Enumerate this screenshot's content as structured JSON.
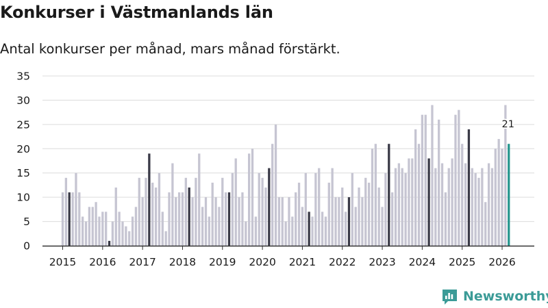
{
  "chart_data": {
    "type": "bar",
    "title": "Konkurser i Västmanlands län",
    "subtitle": "Antal konkurser per månad, mars månad förstärkt.",
    "xlabel": "",
    "ylabel": "",
    "ylim": [
      0,
      35
    ],
    "y_ticks": [
      "0",
      "5",
      "10",
      "15",
      "20",
      "25",
      "30",
      "35"
    ],
    "x_ticks": [
      "2015",
      "2016",
      "2017",
      "2018",
      "2019",
      "2020",
      "2021",
      "2022",
      "2023",
      "2024",
      "2025",
      "2026"
    ],
    "start_month": "2015-01",
    "values": [
      11,
      14,
      11,
      11,
      15,
      11,
      6,
      5,
      8,
      8,
      9,
      6,
      7,
      7,
      1,
      5,
      12,
      7,
      5,
      4,
      3,
      6,
      8,
      14,
      10,
      14,
      19,
      13,
      12,
      15,
      7,
      3,
      11,
      17,
      10,
      11,
      11,
      14,
      12,
      10,
      14,
      19,
      8,
      10,
      6,
      13,
      10,
      8,
      14,
      11,
      11,
      15,
      18,
      10,
      11,
      5,
      19,
      20,
      6,
      15,
      14,
      12,
      16,
      21,
      25,
      10,
      10,
      5,
      10,
      6,
      11,
      13,
      8,
      15,
      7,
      6,
      15,
      16,
      7,
      6,
      13,
      16,
      10,
      10,
      12,
      7,
      10,
      15,
      8,
      12,
      10,
      14,
      13,
      20,
      21,
      12,
      8,
      15,
      21,
      11,
      16,
      17,
      16,
      15,
      18,
      18,
      24,
      21,
      27,
      27,
      18,
      29,
      16,
      26,
      17,
      11,
      16,
      18,
      27,
      28,
      21,
      17,
      24,
      16,
      15,
      14,
      16,
      9,
      17,
      16,
      20,
      22,
      20,
      29,
      21
    ],
    "highlight_month": "March",
    "last_value_label": "21",
    "colors": {
      "base": "#c6c5d2",
      "highlight": "#3a3a47",
      "latest": "#27978f",
      "grid": "#dcdcdc",
      "axis": "#333333",
      "text": "#1a1a1a"
    }
  },
  "brand": {
    "name": "Newsworthy",
    "color": "#3b9b97",
    "icon": "bar-chart-speech-bubble-icon"
  }
}
